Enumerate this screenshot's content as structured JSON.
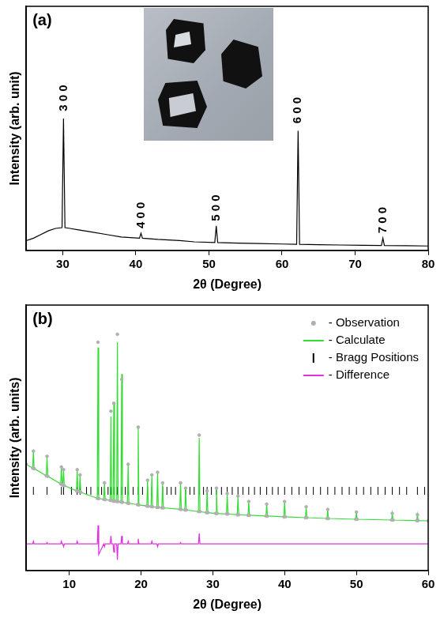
{
  "chart_data": [
    {
      "type": "line",
      "title": "(a)",
      "x_label": "2θ (Degree)",
      "y_label": "Intensity (arb. unit)",
      "x": [
        25,
        26,
        27,
        28,
        29,
        29.9,
        30.1,
        30.3,
        31,
        32,
        34,
        36,
        38,
        40.5,
        40.7,
        40.9,
        43,
        46,
        48,
        50.8,
        51.0,
        51.2,
        54,
        57,
        60,
        62.0,
        62.2,
        62.4,
        65,
        68,
        71,
        73.6,
        73.8,
        74.0,
        77,
        80
      ],
      "values": [
        4,
        5,
        6.5,
        8,
        9,
        9.3,
        54,
        9.3,
        9,
        8.5,
        7.5,
        6.5,
        5.5,
        5,
        7,
        5,
        4.5,
        4,
        3.5,
        3.2,
        10,
        3.2,
        3,
        2.8,
        2.6,
        2.5,
        49,
        2.5,
        2.3,
        2.2,
        2.1,
        2,
        5,
        2,
        1.9,
        1.8
      ],
      "color": "#000000",
      "line_style": "solid",
      "marker": "none",
      "xlim": [
        25,
        80
      ],
      "xticks": [
        30,
        40,
        50,
        60,
        70,
        80
      ],
      "ylim": [
        0,
        100
      ],
      "grid": false,
      "tick_labels": "x",
      "annotations": [
        {
          "text": "3 0 0",
          "x": 30.1,
          "y": 57
        },
        {
          "text": "4 0 0",
          "x": 40.7,
          "y": 9
        },
        {
          "text": "5 0 0",
          "x": 51.0,
          "y": 12
        },
        {
          "text": "6 0 0",
          "x": 62.2,
          "y": 52
        },
        {
          "text": "7 0 0",
          "x": 73.8,
          "y": 7
        }
      ]
    },
    {
      "type": "scatter",
      "title": "(b)",
      "x_label": "2θ (Degree)",
      "y_label": "Intensity (arb. units)",
      "x": [
        4,
        4.9,
        5.0,
        5.1,
        6.8,
        6.9,
        7.0,
        8.8,
        8.9,
        9.0,
        9.1,
        9.2,
        9.3,
        11.0,
        11.1,
        11.2,
        11.4,
        11.5,
        11.6,
        13.9,
        14.0,
        14.1,
        14.8,
        14.9,
        15.0,
        15.7,
        15.8,
        15.9,
        16.1,
        16.2,
        16.3,
        16.6,
        16.7,
        16.8,
        17.2,
        17.3,
        17.4,
        18.1,
        18.2,
        18.3,
        19.5,
        19.6,
        19.7,
        20.8,
        20.9,
        21.0,
        21.4,
        21.5,
        21.6,
        22.2,
        22.3,
        22.4,
        22.9,
        23.0,
        23.1,
        25.4,
        25.5,
        25.6,
        26.1,
        26.2,
        26.3,
        28.0,
        28.1,
        28.2,
        29.1,
        29.2,
        29.3,
        30.4,
        30.5,
        30.6,
        31.9,
        32.0,
        32.1,
        33.4,
        33.5,
        33.6,
        34.9,
        35.0,
        35.1,
        37.4,
        37.5,
        37.6,
        39.9,
        40.0,
        40.1,
        42.9,
        43.0,
        43.1,
        45.9,
        46.0,
        46.1,
        49.9,
        50.0,
        50.1,
        54.9,
        55.0,
        55.1,
        58.4,
        58.5,
        58.6,
        60
      ],
      "series": [
        {
          "name": "- Observation",
          "color": "#b0b0b0",
          "marker": "circle",
          "line_style": "none",
          "values": [
            40,
            38.6,
            45,
            38.4,
            35.7,
            43,
            35.5,
            32.6,
            39,
            32.4,
            32.2,
            38,
            32.0,
            30.0,
            38,
            29.9,
            29.7,
            36,
            29.5,
            27.2,
            86,
            27.1,
            26.8,
            33,
            26.7,
            26.4,
            60,
            26.4,
            26.2,
            63,
            26.2,
            26.0,
            89,
            26.0,
            25.8,
            72,
            25.7,
            25.4,
            40,
            25.3,
            24.8,
            54,
            24.7,
            24.3,
            34,
            24.2,
            24.1,
            36,
            24.0,
            23.8,
            37,
            23.8,
            23.6,
            33,
            23.6,
            23.1,
            33,
            23.0,
            22.8,
            31,
            22.8,
            22.2,
            51,
            22.2,
            21.8,
            30,
            21.8,
            21.5,
            31,
            21.5,
            21.3,
            29,
            21.3,
            21.0,
            28,
            21.0,
            20.8,
            26,
            20.8,
            20.5,
            25,
            20.5,
            20.2,
            26,
            20.2,
            19.9,
            24,
            19.9,
            19.6,
            23,
            19.6,
            19.3,
            22,
            19.3,
            19.0,
            21.5,
            19.0,
            18.8,
            21,
            18.8,
            18.7
          ]
        },
        {
          "name": "- Calculate",
          "color": "#33dd33",
          "marker": "none",
          "line_style": "solid",
          "values": [
            40,
            38.6,
            45,
            38.4,
            35.7,
            43,
            35.5,
            32.6,
            39,
            32.4,
            32.2,
            38,
            32.0,
            30.0,
            38,
            29.9,
            29.7,
            36,
            29.5,
            27.2,
            84,
            27.1,
            26.8,
            33,
            26.7,
            26.4,
            58,
            26.4,
            26.2,
            63,
            26.2,
            26.0,
            86,
            26.0,
            25.8,
            74,
            25.7,
            25.4,
            40,
            25.3,
            24.8,
            54,
            24.7,
            24.3,
            34,
            24.2,
            24.1,
            36,
            24.0,
            23.8,
            37,
            23.8,
            23.6,
            33,
            23.6,
            23.1,
            33,
            23.0,
            22.8,
            31,
            22.8,
            22.2,
            50,
            22.2,
            21.8,
            30,
            21.8,
            21.5,
            31,
            21.5,
            21.3,
            29,
            21.3,
            21.0,
            28,
            21.0,
            20.8,
            26,
            20.8,
            20.5,
            25,
            20.5,
            20.2,
            26,
            20.2,
            19.9,
            24,
            19.9,
            19.6,
            23,
            19.6,
            19.3,
            22,
            19.3,
            19.0,
            21.5,
            19.0,
            18.8,
            21,
            18.8,
            18.7
          ]
        },
        {
          "name": "- Bragg Positions",
          "color": "#000000",
          "marker": "vline",
          "line_style": "none",
          "x": [
            5.0,
            6.9,
            8.9,
            9.2,
            10.3,
            11.1,
            11.5,
            12.4,
            13.0,
            14.0,
            14.5,
            14.9,
            15.4,
            15.8,
            16.2,
            16.7,
            17.3,
            17.8,
            18.2,
            18.9,
            19.6,
            20.2,
            20.9,
            21.5,
            22.3,
            23.0,
            23.6,
            24.2,
            24.8,
            25.5,
            26.2,
            26.8,
            27.4,
            28.1,
            28.7,
            29.2,
            29.8,
            30.5,
            31.2,
            32.0,
            32.7,
            33.5,
            34.2,
            35.0,
            35.8,
            36.6,
            37.5,
            38.3,
            39.1,
            40.0,
            41.0,
            42.0,
            43.0,
            44.0,
            45.0,
            46.0,
            47.0,
            48.0,
            49.0,
            50.0,
            51.0,
            52.0,
            53.0,
            54.0,
            55.0,
            56.0,
            57.0,
            58.5,
            59.5
          ],
          "values": [
            30,
            30,
            30,
            30,
            30,
            30,
            30,
            30,
            30,
            30,
            30,
            30,
            30,
            30,
            30,
            30,
            30,
            30,
            30,
            30,
            30,
            30,
            30,
            30,
            30,
            30,
            30,
            30,
            30,
            30,
            30,
            30,
            30,
            30,
            30,
            30,
            30,
            30,
            30,
            30,
            30,
            30,
            30,
            30,
            30,
            30,
            30,
            30,
            30,
            30,
            30,
            30,
            30,
            30,
            30,
            30,
            30,
            30,
            30,
            30,
            30,
            30,
            30,
            30,
            30,
            30,
            30,
            30,
            30
          ]
        },
        {
          "name": "- Difference",
          "color": "#dd33dd",
          "marker": "none",
          "line_style": "solid",
          "values": [
            10,
            10,
            11,
            10,
            10,
            10.5,
            10,
            10,
            11,
            10,
            10,
            9,
            10,
            10,
            11,
            10,
            10,
            10,
            10,
            10,
            17,
            6,
            10,
            9,
            10,
            10,
            13,
            10,
            10,
            7,
            10,
            10,
            4,
            10,
            10,
            13,
            10,
            10,
            11,
            10,
            10,
            12,
            10,
            10,
            10,
            10,
            10,
            11,
            10,
            10,
            9,
            10,
            10,
            10,
            10,
            10,
            10.5,
            10,
            10,
            10,
            10,
            10,
            14,
            10,
            10,
            10,
            10,
            10,
            10,
            10,
            10,
            10,
            10,
            10,
            10,
            10,
            10,
            10,
            10,
            10,
            10,
            10,
            10,
            10,
            10,
            10,
            10,
            10,
            10,
            10,
            10,
            10,
            10,
            10,
            10,
            10,
            10,
            10,
            10,
            10,
            10
          ]
        }
      ],
      "xlim": [
        4,
        60
      ],
      "xticks": [
        10,
        20,
        30,
        40,
        50,
        60
      ],
      "ylim": [
        0,
        100
      ],
      "grid": false,
      "tick_labels": "x",
      "legend": "upper right"
    }
  ]
}
